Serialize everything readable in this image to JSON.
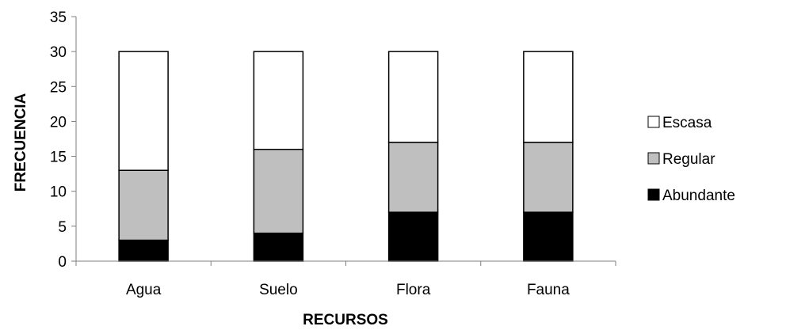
{
  "chart_data": {
    "type": "bar",
    "stacked": true,
    "categories": [
      "Agua",
      "Suelo",
      "Flora",
      "Fauna"
    ],
    "series": [
      {
        "name": "Abundante",
        "values": [
          3,
          4,
          7,
          7
        ],
        "color": "#000000"
      },
      {
        "name": "Regular",
        "values": [
          10,
          12,
          10,
          10
        ],
        "color": "#bfbfbf"
      },
      {
        "name": "Escasa",
        "values": [
          17,
          14,
          13,
          13
        ],
        "color": "#ffffff"
      }
    ],
    "xlabel": "RECURSOS",
    "ylabel": "FRECUENCIA",
    "ylim": [
      0,
      35
    ],
    "yticks": [
      0,
      5,
      10,
      15,
      20,
      25,
      30,
      35
    ],
    "grid": false,
    "legend_position": "right",
    "legend_order": [
      "Escasa",
      "Regular",
      "Abundante"
    ]
  }
}
